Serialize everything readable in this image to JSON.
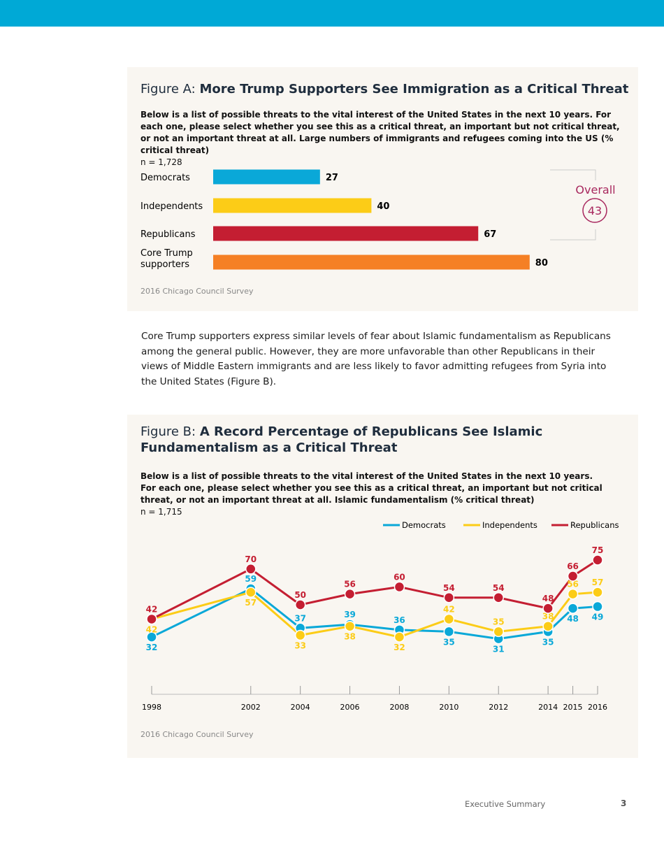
{
  "paragraph": "Core Trump supporters express similar levels of fear about Islamic fundamentalism as Republicans among the general public. However, they are more unfavorable than other Republicans in their views of Middle Eastern immigrants and are less likely to favor admitting refugees from Syria into the United States (Figure B).",
  "footer": {
    "section": "Executive Summary",
    "page": "3"
  },
  "chart_data": [
    {
      "type": "bar",
      "orientation": "horizontal",
      "title_prefix": "Figure A:",
      "title": "More Trump Supporters See Immigration as a Critical Threat",
      "question": "Below is a list of possible threats to the vital interest of the United States in the next 10 years. For each one, please select whether you see this as a critical threat, an important but not critical threat, or not an important threat at all.",
      "topic": "Large numbers of immigrants and refugees coming into the US",
      "unit": "(% critical threat)",
      "sample": "n = 1,728",
      "categories": [
        "Democrats",
        "Independents",
        "Republicans",
        "Core Trump supporters"
      ],
      "values": [
        27,
        40,
        67,
        80
      ],
      "colors": [
        "#0aa8d8",
        "#fccc17",
        "#c41e32",
        "#f58025"
      ],
      "overall_label": "Overall",
      "overall_value": 43,
      "source": "2016 Chicago Council Survey"
    },
    {
      "type": "line",
      "title_prefix": "Figure B:",
      "title": "A Record Percentage of Republicans See Islamic Fundamentalism as a Critical Threat",
      "question": [
        "Below is a list of possible threats to the vital interest of the United States in the next 10 years.",
        "For each one, please select whether you see this as a critical threat, an important but not critical threat, or not an important threat at all."
      ],
      "topic": "Islamic fundamentalism",
      "unit": "(% critical threat)",
      "sample": "n = 1,715",
      "x": [
        1998,
        2002,
        2004,
        2006,
        2008,
        2010,
        2012,
        2014,
        2015,
        2016
      ],
      "xlim": [
        1998,
        2016
      ],
      "xticks": [
        1998,
        2002,
        2004,
        2006,
        2008,
        2010,
        2012,
        2014,
        2015,
        2016
      ],
      "series": [
        {
          "name": "Democrats",
          "color": "#0aa8d8",
          "values": [
            32,
            59,
            37,
            39,
            36,
            35,
            31,
            35,
            48,
            49
          ]
        },
        {
          "name": "Independents",
          "color": "#fccc17",
          "values": [
            42,
            57,
            33,
            38,
            32,
            42,
            35,
            38,
            56,
            57
          ]
        },
        {
          "name": "Republicans",
          "color": "#c41e32",
          "values": [
            42,
            70,
            50,
            56,
            60,
            54,
            54,
            48,
            66,
            75
          ]
        }
      ],
      "legend": "top-right",
      "source": "2016 Chicago Council Survey"
    }
  ]
}
